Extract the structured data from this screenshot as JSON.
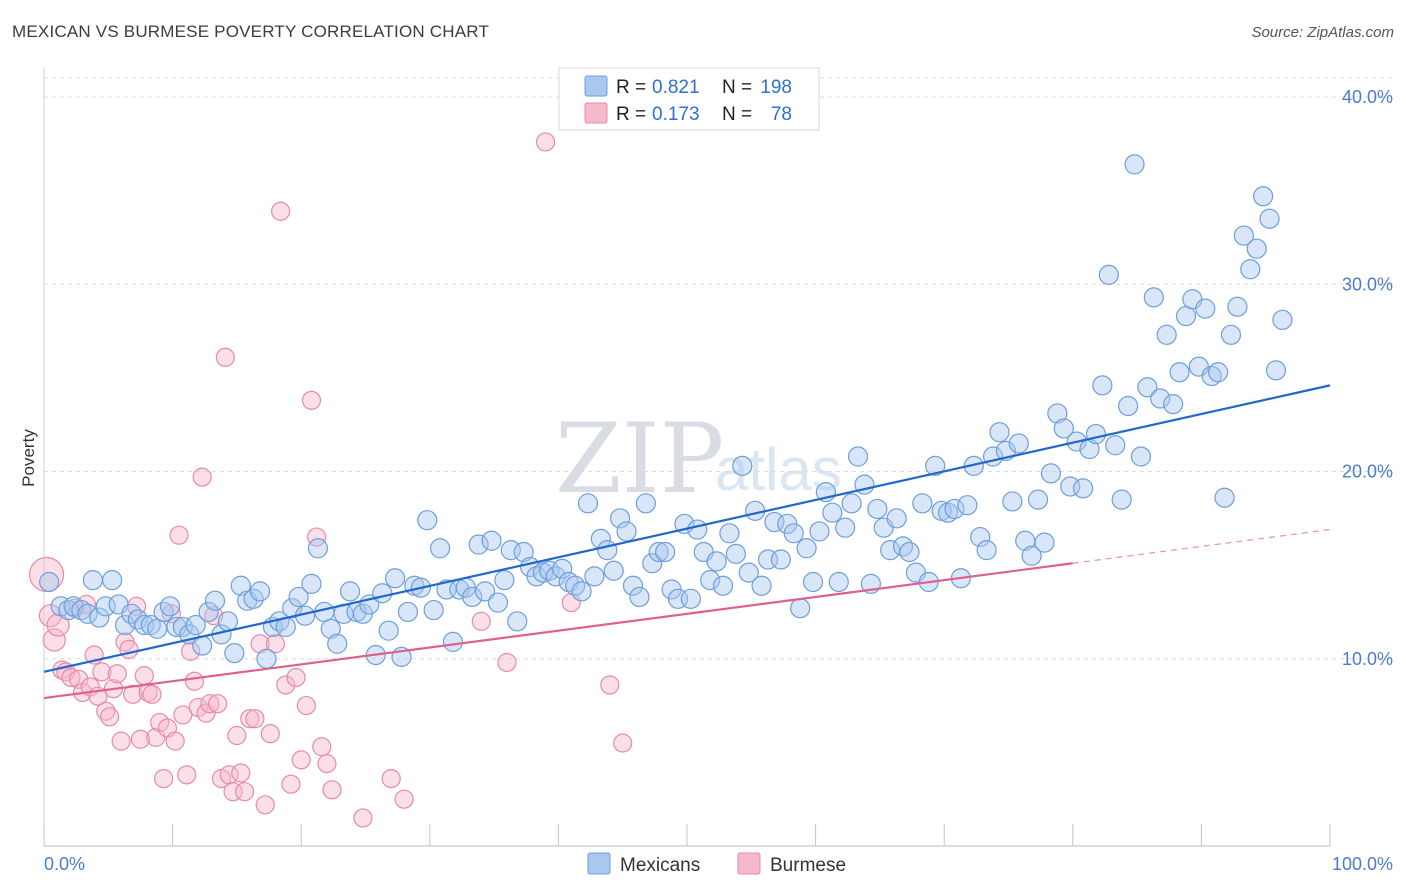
{
  "title": "MEXICAN VS BURMESE POVERTY CORRELATION CHART",
  "source": "Source: ZipAtlas.com",
  "watermark": {
    "zip": "ZIP",
    "atlas": "atlas"
  },
  "colors": {
    "blue_fill": "#a9c8ef",
    "blue_stroke": "#6d9fdc",
    "blue_line": "#2068c9",
    "pink_fill": "#f6b8cb",
    "pink_stroke": "#e88aa8",
    "pink_line": "#e0608d",
    "grid": "#dcdcdc",
    "axis_label": "#4a7cc9"
  },
  "legend": {
    "rows": [
      {
        "r_label": "R =",
        "r_value": "0.821",
        "n_label": "N =",
        "n_value": "198",
        "series": "Mexicans"
      },
      {
        "r_label": "R =",
        "r_value": "0.173",
        "n_label": "N =",
        "n_value": "78",
        "series": "Burmese"
      }
    ]
  },
  "chart_data": {
    "type": "scatter",
    "title": "MEXICAN VS BURMESE POVERTY CORRELATION CHART",
    "xlabel": "",
    "ylabel": "Poverty",
    "xlim": [
      0,
      100
    ],
    "ylim": [
      0,
      40
    ],
    "x_tick_labels": [
      "0.0%",
      "100.0%"
    ],
    "y_ticks": [
      10,
      20,
      30,
      40
    ],
    "y_tick_labels": [
      "10.0%",
      "20.0%",
      "30.0%",
      "40.0%"
    ],
    "grid": true,
    "legend_position": "top-center",
    "series": [
      {
        "name": "Mexicans",
        "R": 0.821,
        "N": 198,
        "trend": {
          "x0": 0,
          "y0": 9.3,
          "x1": 100,
          "y1": 24.6
        },
        "points": [
          [
            0.4,
            14.1
          ],
          [
            1.3,
            12.8
          ],
          [
            1.9,
            12.6
          ],
          [
            2.3,
            12.8
          ],
          [
            2.9,
            12.6
          ],
          [
            3.4,
            12.4
          ],
          [
            3.8,
            14.2
          ],
          [
            4.3,
            12.2
          ],
          [
            4.8,
            12.8
          ],
          [
            5.3,
            14.2
          ],
          [
            5.8,
            12.9
          ],
          [
            6.3,
            11.8
          ],
          [
            6.8,
            12.4
          ],
          [
            7.3,
            12.1
          ],
          [
            7.8,
            11.8
          ],
          [
            8.3,
            11.8
          ],
          [
            8.8,
            11.6
          ],
          [
            9.3,
            12.5
          ],
          [
            9.8,
            12.8
          ],
          [
            10.3,
            11.7
          ],
          [
            10.8,
            11.7
          ],
          [
            11.3,
            11.3
          ],
          [
            11.8,
            11.8
          ],
          [
            12.3,
            10.7
          ],
          [
            12.8,
            12.5
          ],
          [
            13.3,
            13.1
          ],
          [
            13.8,
            11.3
          ],
          [
            14.3,
            12.0
          ],
          [
            14.8,
            10.3
          ],
          [
            15.3,
            13.9
          ],
          [
            15.8,
            13.1
          ],
          [
            16.3,
            13.2
          ],
          [
            16.8,
            13.6
          ],
          [
            17.3,
            10.0
          ],
          [
            17.8,
            11.7
          ],
          [
            18.3,
            12.0
          ],
          [
            18.8,
            11.7
          ],
          [
            19.3,
            12.7
          ],
          [
            19.8,
            13.3
          ],
          [
            20.3,
            12.3
          ],
          [
            20.8,
            14.0
          ],
          [
            21.3,
            15.9
          ],
          [
            21.8,
            12.5
          ],
          [
            22.3,
            11.6
          ],
          [
            22.8,
            10.8
          ],
          [
            23.3,
            12.4
          ],
          [
            23.8,
            13.6
          ],
          [
            24.3,
            12.5
          ],
          [
            24.8,
            12.4
          ],
          [
            25.3,
            12.9
          ],
          [
            25.8,
            10.2
          ],
          [
            26.3,
            13.5
          ],
          [
            26.8,
            11.5
          ],
          [
            27.3,
            14.3
          ],
          [
            27.8,
            10.1
          ],
          [
            28.3,
            12.5
          ],
          [
            28.8,
            13.9
          ],
          [
            29.3,
            13.8
          ],
          [
            29.8,
            17.4
          ],
          [
            30.3,
            12.6
          ],
          [
            30.8,
            15.9
          ],
          [
            31.3,
            13.7
          ],
          [
            31.8,
            10.9
          ],
          [
            32.3,
            13.7
          ],
          [
            32.8,
            13.8
          ],
          [
            33.3,
            13.3
          ],
          [
            33.8,
            16.1
          ],
          [
            34.3,
            13.6
          ],
          [
            34.8,
            16.3
          ],
          [
            35.3,
            13.0
          ],
          [
            35.8,
            14.2
          ],
          [
            36.3,
            15.8
          ],
          [
            36.8,
            12.0
          ],
          [
            37.3,
            15.7
          ],
          [
            37.8,
            14.9
          ],
          [
            38.3,
            14.4
          ],
          [
            38.8,
            14.6
          ],
          [
            39.3,
            14.7
          ],
          [
            39.8,
            14.4
          ],
          [
            40.3,
            14.8
          ],
          [
            40.8,
            14.1
          ],
          [
            41.3,
            13.9
          ],
          [
            41.8,
            13.6
          ],
          [
            42.3,
            18.3
          ],
          [
            42.8,
            14.4
          ],
          [
            43.3,
            16.4
          ],
          [
            43.8,
            15.8
          ],
          [
            44.3,
            14.7
          ],
          [
            44.8,
            17.5
          ],
          [
            45.3,
            16.8
          ],
          [
            45.8,
            13.9
          ],
          [
            46.3,
            13.3
          ],
          [
            46.8,
            18.3
          ],
          [
            47.3,
            15.1
          ],
          [
            47.8,
            15.7
          ],
          [
            48.3,
            15.7
          ],
          [
            48.8,
            13.7
          ],
          [
            49.3,
            13.2
          ],
          [
            49.8,
            17.2
          ],
          [
            50.3,
            13.2
          ],
          [
            50.8,
            16.9
          ],
          [
            51.3,
            15.7
          ],
          [
            51.8,
            14.2
          ],
          [
            52.3,
            15.2
          ],
          [
            52.8,
            13.9
          ],
          [
            53.3,
            16.7
          ],
          [
            53.8,
            15.6
          ],
          [
            54.3,
            20.3
          ],
          [
            54.8,
            14.6
          ],
          [
            55.3,
            17.9
          ],
          [
            55.8,
            13.9
          ],
          [
            56.3,
            15.3
          ],
          [
            56.8,
            17.3
          ],
          [
            57.3,
            15.3
          ],
          [
            57.8,
            17.2
          ],
          [
            58.3,
            16.7
          ],
          [
            58.8,
            12.7
          ],
          [
            59.3,
            15.9
          ],
          [
            59.8,
            14.1
          ],
          [
            60.3,
            16.8
          ],
          [
            60.8,
            18.9
          ],
          [
            61.3,
            17.8
          ],
          [
            61.8,
            14.1
          ],
          [
            62.3,
            17.0
          ],
          [
            62.8,
            18.3
          ],
          [
            63.3,
            20.8
          ],
          [
            63.8,
            19.3
          ],
          [
            64.3,
            14.0
          ],
          [
            64.8,
            18.0
          ],
          [
            65.3,
            17.0
          ],
          [
            65.8,
            15.8
          ],
          [
            66.3,
            17.5
          ],
          [
            66.8,
            16.0
          ],
          [
            67.3,
            15.7
          ],
          [
            67.8,
            14.6
          ],
          [
            68.3,
            18.3
          ],
          [
            68.8,
            14.1
          ],
          [
            69.3,
            20.3
          ],
          [
            69.8,
            17.9
          ],
          [
            70.3,
            17.8
          ],
          [
            70.8,
            18.0
          ],
          [
            71.3,
            14.3
          ],
          [
            71.8,
            18.2
          ],
          [
            72.3,
            20.3
          ],
          [
            72.8,
            16.5
          ],
          [
            73.3,
            15.8
          ],
          [
            73.8,
            20.8
          ],
          [
            74.3,
            22.1
          ],
          [
            74.8,
            21.1
          ],
          [
            75.3,
            18.4
          ],
          [
            75.8,
            21.5
          ],
          [
            76.3,
            16.3
          ],
          [
            76.8,
            15.5
          ],
          [
            77.3,
            18.5
          ],
          [
            77.8,
            16.2
          ],
          [
            78.3,
            19.9
          ],
          [
            78.8,
            23.1
          ],
          [
            79.3,
            22.3
          ],
          [
            79.8,
            19.2
          ],
          [
            80.3,
            21.6
          ],
          [
            80.8,
            19.1
          ],
          [
            81.3,
            21.2
          ],
          [
            81.8,
            22.0
          ],
          [
            82.3,
            24.6
          ],
          [
            82.8,
            30.5
          ],
          [
            83.3,
            21.4
          ],
          [
            83.8,
            18.5
          ],
          [
            84.3,
            23.5
          ],
          [
            84.8,
            36.4
          ],
          [
            85.3,
            20.8
          ],
          [
            85.8,
            24.5
          ],
          [
            86.3,
            29.3
          ],
          [
            86.8,
            23.9
          ],
          [
            87.3,
            27.3
          ],
          [
            87.8,
            23.6
          ],
          [
            88.3,
            25.3
          ],
          [
            88.8,
            28.3
          ],
          [
            89.3,
            29.2
          ],
          [
            89.8,
            25.6
          ],
          [
            90.3,
            28.7
          ],
          [
            90.8,
            25.1
          ],
          [
            91.3,
            25.3
          ],
          [
            91.8,
            18.6
          ],
          [
            92.3,
            27.3
          ],
          [
            92.8,
            28.8
          ],
          [
            93.3,
            32.6
          ],
          [
            93.8,
            30.8
          ],
          [
            94.3,
            31.9
          ],
          [
            94.8,
            34.7
          ],
          [
            95.3,
            33.5
          ],
          [
            95.8,
            25.4
          ],
          [
            96.3,
            28.1
          ]
        ]
      },
      {
        "name": "Burmese",
        "R": 0.173,
        "N": 78,
        "trend": {
          "x0": 0,
          "y0": 7.9,
          "x1": 80,
          "y1": 15.1,
          "dash_to": {
            "x": 100,
            "y": 16.9
          }
        },
        "points": [
          [
            0.2,
            14.5
          ],
          [
            0.5,
            12.3
          ],
          [
            0.8,
            11.0
          ],
          [
            1.1,
            11.8
          ],
          [
            1.4,
            9.4
          ],
          [
            1.7,
            9.3
          ],
          [
            2.1,
            9.0
          ],
          [
            2.4,
            12.7
          ],
          [
            2.7,
            8.9
          ],
          [
            3.0,
            8.2
          ],
          [
            3.3,
            12.9
          ],
          [
            3.6,
            8.5
          ],
          [
            3.9,
            10.2
          ],
          [
            4.2,
            8.0
          ],
          [
            4.5,
            9.3
          ],
          [
            4.8,
            7.2
          ],
          [
            5.1,
            6.9
          ],
          [
            5.4,
            8.4
          ],
          [
            5.7,
            9.2
          ],
          [
            6.0,
            5.6
          ],
          [
            6.3,
            10.9
          ],
          [
            6.6,
            10.5
          ],
          [
            6.9,
            8.1
          ],
          [
            7.2,
            12.8
          ],
          [
            7.5,
            5.7
          ],
          [
            7.8,
            9.1
          ],
          [
            8.1,
            8.2
          ],
          [
            8.4,
            8.1
          ],
          [
            8.7,
            5.8
          ],
          [
            9.0,
            6.6
          ],
          [
            9.3,
            3.6
          ],
          [
            9.6,
            6.3
          ],
          [
            9.9,
            12.4
          ],
          [
            10.2,
            5.6
          ],
          [
            10.5,
            16.6
          ],
          [
            10.8,
            7.0
          ],
          [
            11.1,
            3.8
          ],
          [
            11.4,
            10.4
          ],
          [
            11.7,
            8.8
          ],
          [
            12.0,
            7.4
          ],
          [
            12.3,
            19.7
          ],
          [
            12.6,
            7.1
          ],
          [
            12.9,
            7.6
          ],
          [
            13.2,
            12.3
          ],
          [
            13.5,
            7.6
          ],
          [
            13.8,
            3.6
          ],
          [
            14.1,
            26.1
          ],
          [
            14.4,
            3.8
          ],
          [
            14.7,
            2.9
          ],
          [
            15.0,
            5.9
          ],
          [
            15.3,
            3.9
          ],
          [
            15.6,
            2.9
          ],
          [
            16.0,
            6.8
          ],
          [
            16.4,
            6.8
          ],
          [
            16.8,
            10.8
          ],
          [
            17.2,
            2.2
          ],
          [
            17.6,
            6.0
          ],
          [
            18.0,
            10.8
          ],
          [
            18.4,
            33.9
          ],
          [
            18.8,
            8.6
          ],
          [
            19.2,
            3.3
          ],
          [
            19.6,
            9.0
          ],
          [
            20.0,
            4.6
          ],
          [
            20.4,
            7.5
          ],
          [
            20.8,
            23.8
          ],
          [
            21.2,
            16.5
          ],
          [
            21.6,
            5.3
          ],
          [
            22.0,
            4.4
          ],
          [
            22.4,
            3.0
          ],
          [
            24.8,
            1.5
          ],
          [
            27.0,
            3.6
          ],
          [
            28.0,
            2.5
          ],
          [
            34.0,
            12.0
          ],
          [
            36.0,
            9.8
          ],
          [
            39.0,
            37.6
          ],
          [
            41.0,
            13.0
          ],
          [
            44.0,
            8.6
          ],
          [
            45.0,
            5.5
          ]
        ]
      }
    ]
  },
  "bottom_legend": [
    {
      "label": "Mexicans"
    },
    {
      "label": "Burmese"
    }
  ]
}
